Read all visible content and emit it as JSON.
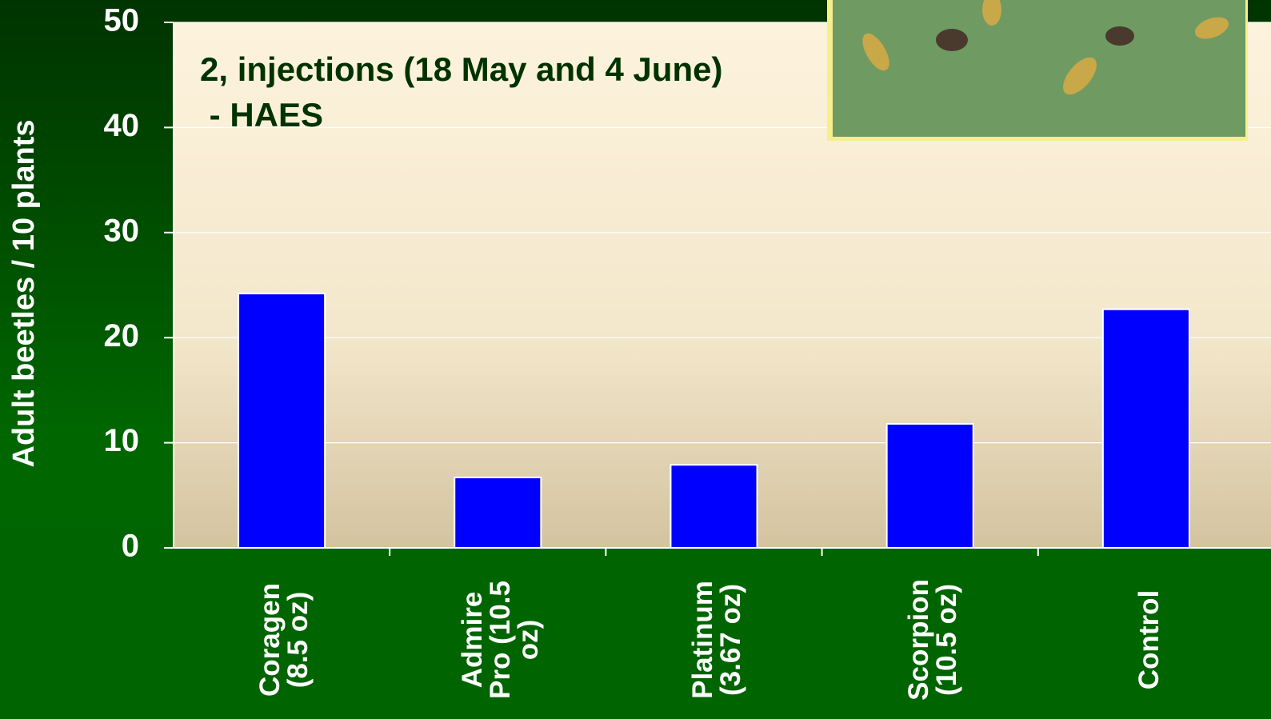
{
  "chart_data": {
    "type": "bar",
    "title": [
      "2, injections (18 May and 4 June)",
      " - HAES"
    ],
    "y_label": "Adult beetles / 10 plants",
    "categories": [
      "Coragen (8.5 oz)",
      "Admire Pro (10.5 oz)",
      "Platinum (3.67 oz)",
      "Scorpion (10.5 oz)",
      "Control"
    ],
    "values": [
      24.2,
      6.7,
      7.9,
      11.8,
      22.7
    ],
    "color": "#0000ff",
    "ylim": [
      0,
      50
    ],
    "yticks": [
      0,
      10,
      20,
      30,
      40,
      50
    ],
    "grid": true
  }
}
